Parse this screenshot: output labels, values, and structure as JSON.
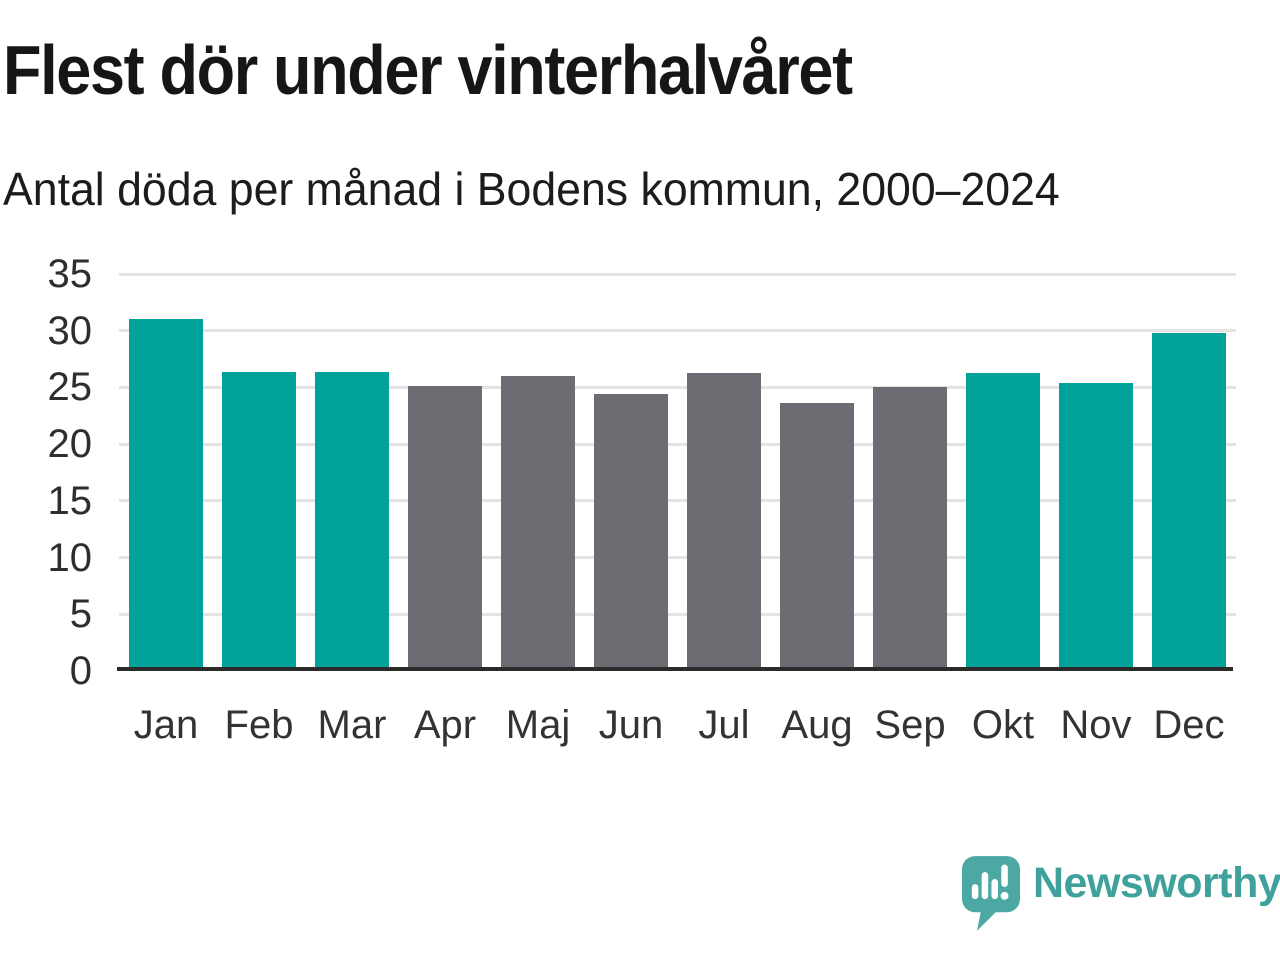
{
  "header": {
    "title": "Flest dör under vinterhalvåret",
    "subtitle": "Antal döda per månad i Bodens kommun, 2000–2024"
  },
  "chart_data": {
    "type": "bar",
    "title": "Flest dör under vinterhalvåret",
    "subtitle": "Antal döda per månad i Bodens kommun, 2000–2024",
    "categories": [
      "Jan",
      "Feb",
      "Mar",
      "Apr",
      "Maj",
      "Jun",
      "Jul",
      "Aug",
      "Sep",
      "Okt",
      "Nov",
      "Dec"
    ],
    "values": [
      31.0,
      26.4,
      26.4,
      25.1,
      26.0,
      24.4,
      26.3,
      23.6,
      25.0,
      26.3,
      25.4,
      29.8
    ],
    "bar_colors": [
      "#00a29a",
      "#00a29a",
      "#00a29a",
      "#6c6c72",
      "#6c6c72",
      "#6c6c72",
      "#6c6c72",
      "#6c6c72",
      "#6c6c72",
      "#00a29a",
      "#00a29a",
      "#00a29a"
    ],
    "highlighted_months": [
      "Jan",
      "Feb",
      "Mar",
      "Okt",
      "Nov",
      "Dec"
    ],
    "xlabel": "",
    "ylabel": "",
    "ylim": [
      0,
      35
    ],
    "yticks": [
      0,
      5,
      10,
      15,
      20,
      25,
      30,
      35
    ],
    "grid": true,
    "legend": "none",
    "palette": {
      "winter_highlight": "#00a29a",
      "summer": "#6c6c72",
      "gridline": "#e3e3e3",
      "axis_line": "#2b2b2b",
      "text": "#1c1c1c"
    }
  },
  "footer": {
    "brand": "Newsworthy",
    "brand_color": "#3ea19c",
    "logo_icon": "newsworthy-speech-bubble-bar-chart-icon"
  }
}
